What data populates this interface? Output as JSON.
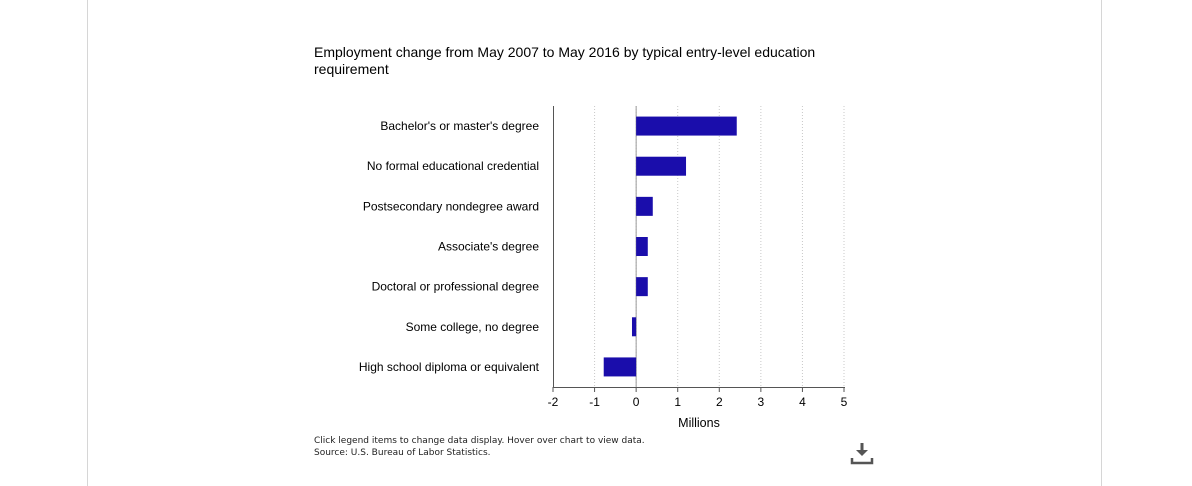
{
  "chart_data": {
    "type": "bar",
    "orientation": "horizontal",
    "title": "Employment change from May 2007 to May 2016 by typical entry-level education requirement",
    "xlabel": "Millions",
    "ylabel": "",
    "xlim": [
      -2,
      5
    ],
    "x_ticks": [
      -2,
      -1,
      0,
      1,
      2,
      3,
      4,
      5
    ],
    "grid": "vertical-dotted",
    "bar_color": "#1a0dab",
    "categories": [
      "Bachelor's or master's degree",
      "No formal educational credential",
      "Postsecondary nondegree award",
      "Associate's degree",
      "Doctoral or professional degree",
      "Some college, no degree",
      "High school diploma or equivalent"
    ],
    "values": [
      2.42,
      1.2,
      0.4,
      0.28,
      0.28,
      -0.1,
      -0.78
    ]
  },
  "notes": {
    "line1": "Click legend items to change data display. Hover over chart to view data.",
    "line2": "Source: U.S. Bureau of Labor Statistics."
  },
  "icons": {
    "download": "download-icon"
  }
}
